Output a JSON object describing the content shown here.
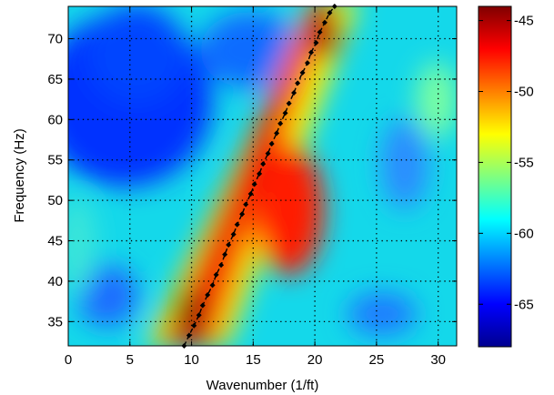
{
  "chart_data": {
    "type": "heatmap",
    "title": "",
    "xlabel": "Wavenumber (1/ft)",
    "ylabel": "Frequency (Hz)",
    "xlim": [
      0,
      31.5
    ],
    "ylim": [
      32,
      74
    ],
    "x_ticks": [
      "0",
      "5",
      "10",
      "15",
      "20",
      "25",
      "30"
    ],
    "x_tick_values": [
      0,
      5,
      10,
      15,
      20,
      25,
      30
    ],
    "y_ticks": [
      "35",
      "40",
      "45",
      "50",
      "55",
      "60",
      "65",
      "70"
    ],
    "y_tick_values": [
      35,
      40,
      45,
      50,
      55,
      60,
      65,
      70
    ],
    "grid": true,
    "colorbar": {
      "range": [
        -68,
        -44
      ],
      "ticks": [
        "-45",
        "-50",
        "-55",
        "-60",
        "-65"
      ],
      "tick_values": [
        -45,
        -50,
        -55,
        -60,
        -65
      ],
      "colormap": "jet"
    },
    "ridge_line": {
      "x": [
        9.4,
        9.8,
        10.2,
        10.6,
        10.9,
        11.3,
        11.7,
        12.0,
        12.4,
        12.7,
        13.0,
        13.4,
        13.7,
        14.1,
        14.4,
        14.8,
        15.1,
        15.5,
        15.8,
        16.2,
        16.5,
        16.9,
        17.2,
        17.6,
        17.9,
        18.3,
        18.6,
        19.0,
        19.4,
        19.7,
        20.1,
        20.4,
        20.8,
        21.2,
        21.6
      ],
      "y": [
        32,
        33.3,
        34.5,
        35.8,
        37,
        38.3,
        39.5,
        40.8,
        42,
        43.3,
        44.5,
        45.8,
        47,
        48.3,
        49.5,
        50.8,
        52,
        53.3,
        54.5,
        55.8,
        57,
        58.3,
        59.5,
        60.8,
        62,
        63.3,
        64.5,
        65.8,
        67,
        68.3,
        69.5,
        70.8,
        72,
        73.2,
        74
      ]
    }
  }
}
